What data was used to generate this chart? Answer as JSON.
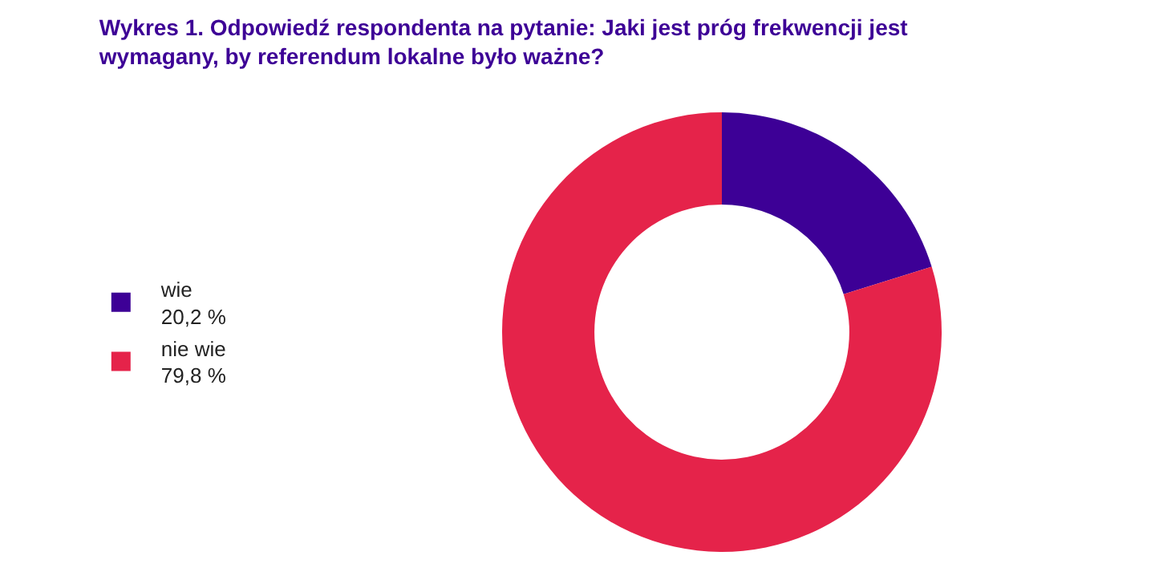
{
  "chart_data": {
    "type": "donut",
    "title": "Wykres 1. Odpowiedź respondenta na pytanie: Jaki jest próg frekwencji jest wymagany, by referendum lokalne było ważne?",
    "categories": [
      "wie",
      "nie wie"
    ],
    "values": [
      20.2,
      79.8
    ],
    "value_labels": [
      "20,2 %",
      "79,8 %"
    ],
    "colors": [
      "#3d0096",
      "#e5234a"
    ],
    "legend": "left"
  }
}
